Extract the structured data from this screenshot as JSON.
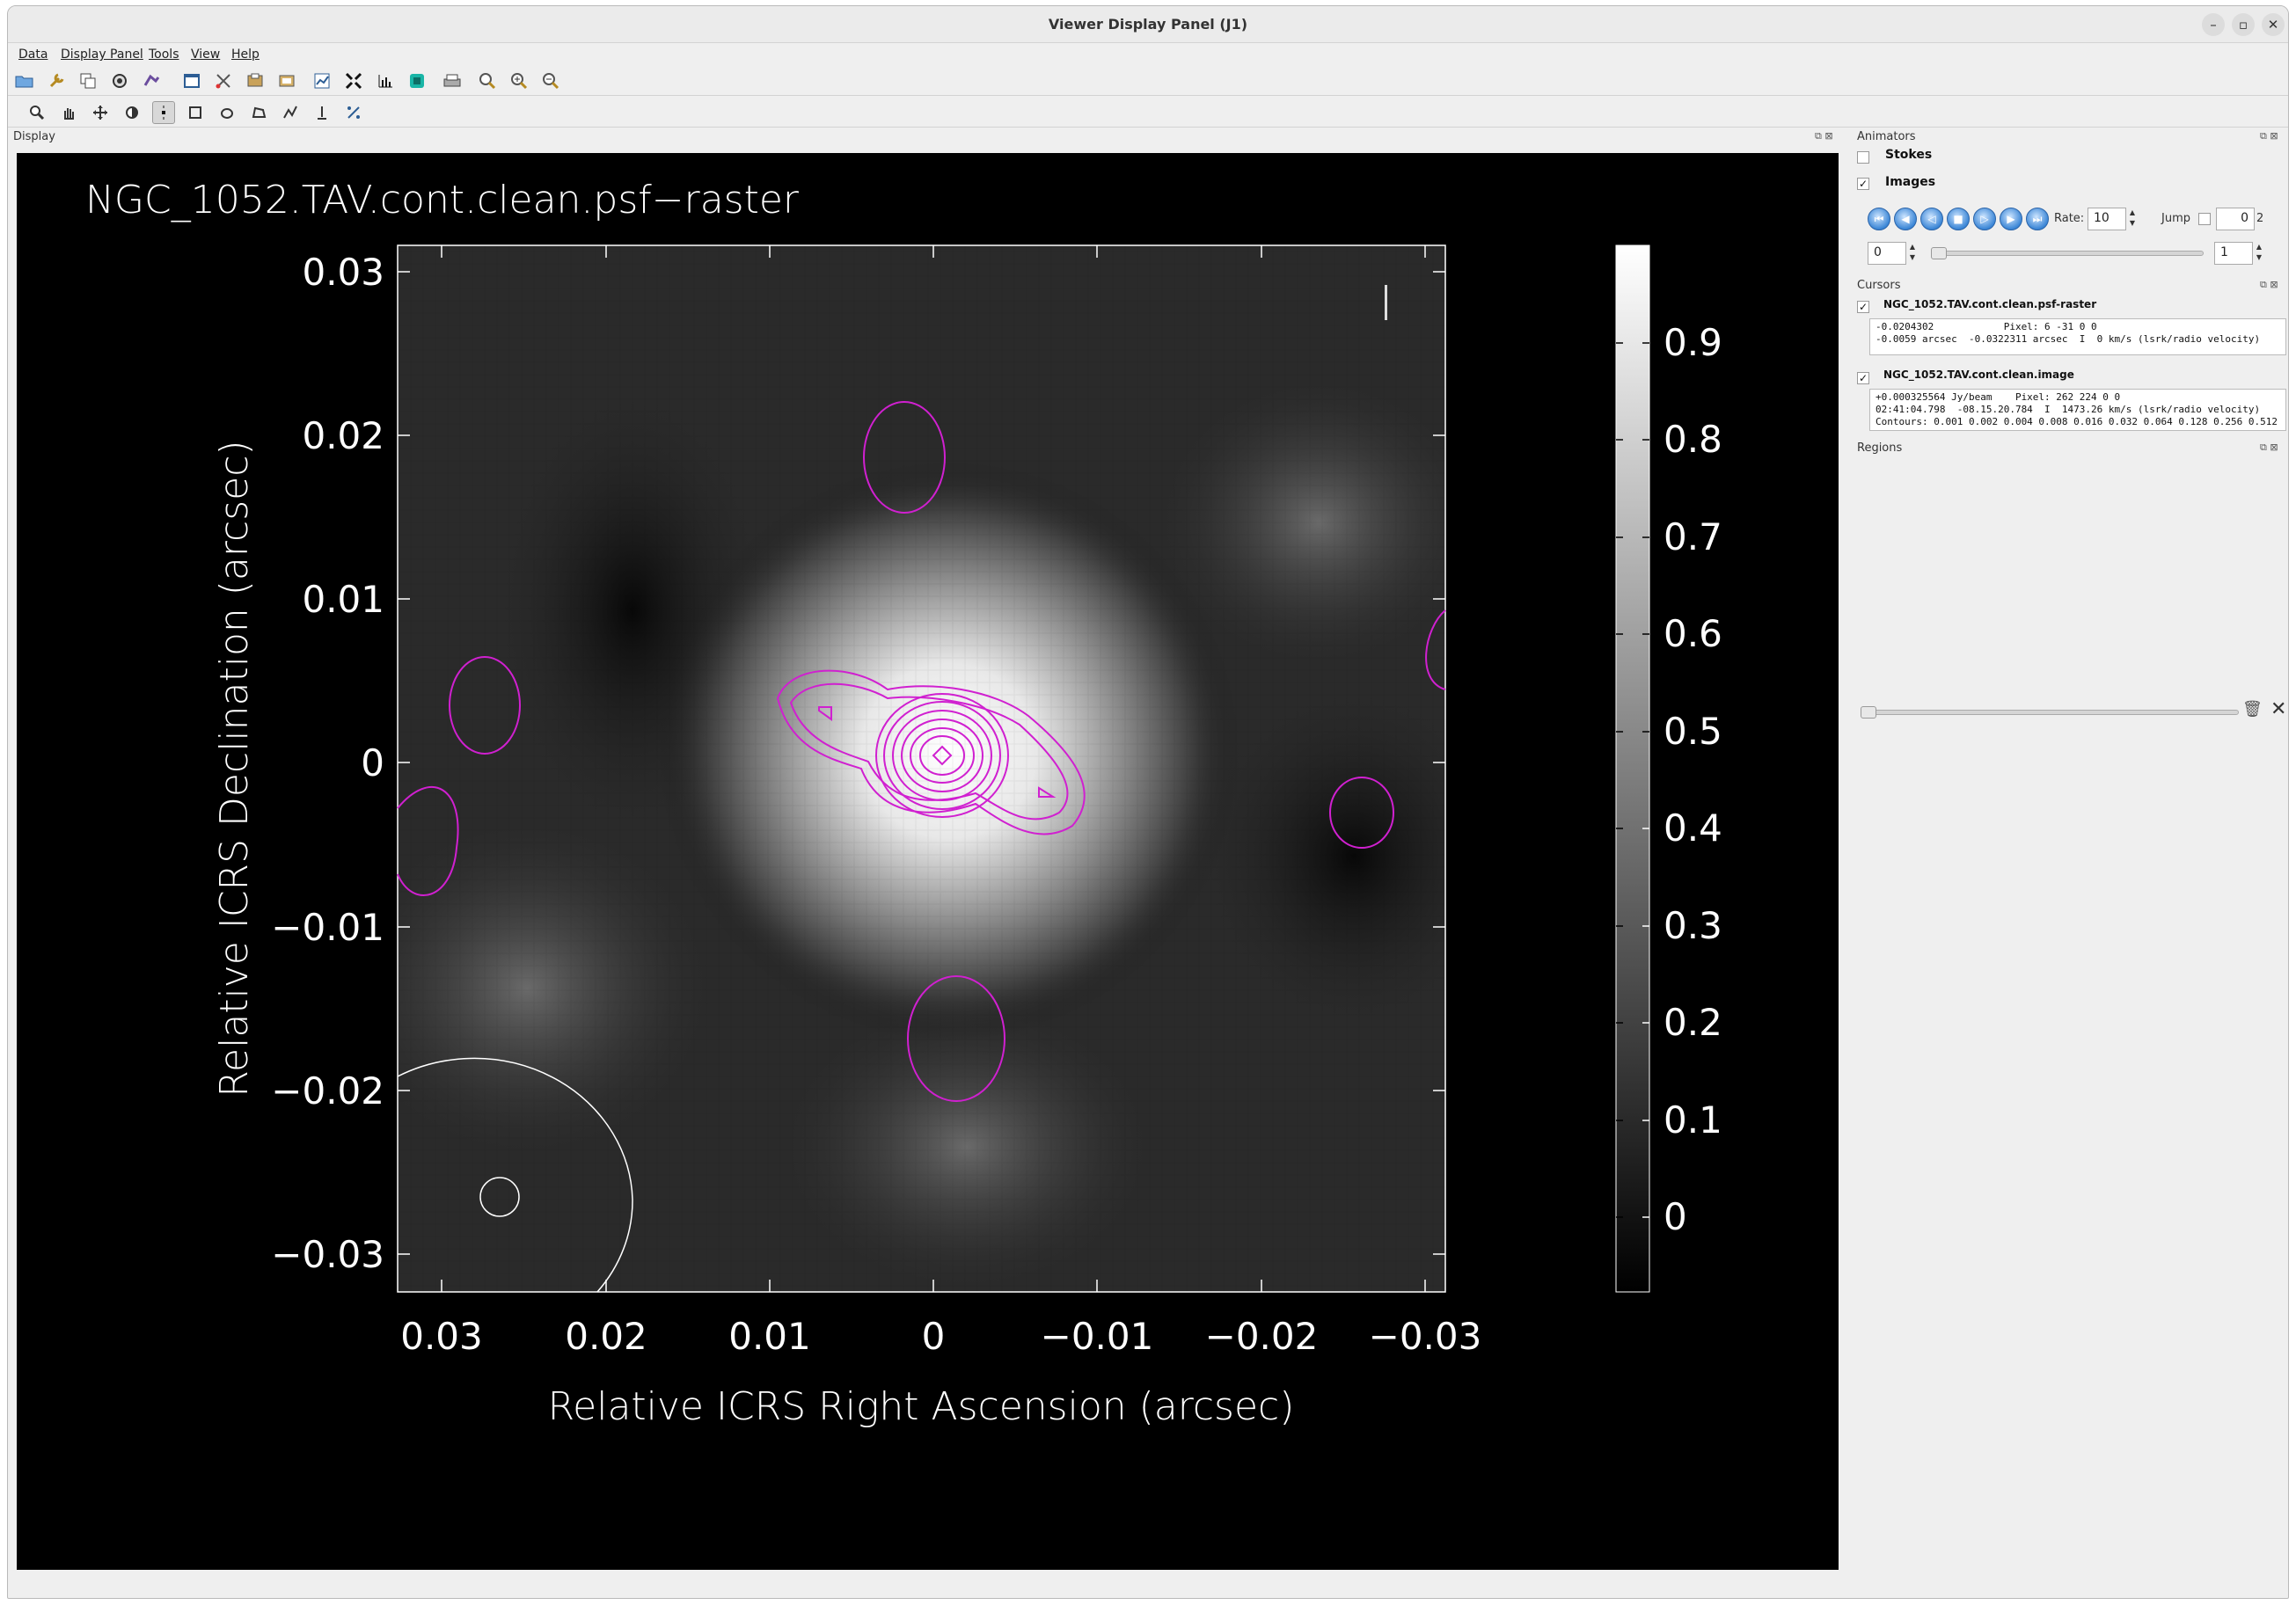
{
  "window": {
    "title": "Viewer Display Panel (J1)"
  },
  "menu": [
    "Data",
    "Display Panel",
    "Tools",
    "View",
    "Help"
  ],
  "toolbar1": [
    "open-icon",
    "wrench-icon",
    "copy-icon",
    "reload-icon",
    "export-icon",
    "panel-icon",
    "scissors-icon",
    "print-preview-icon",
    "save-image-icon",
    "chart-icon",
    "fit-icon",
    "histogram-icon",
    "color-icon",
    "printer-icon",
    "zoom-icon",
    "zoom-in-icon",
    "zoom-out-icon"
  ],
  "toolbar2": [
    "zoom-tool-icon",
    "pan-tool-icon",
    "move-tool-icon",
    "contrast-tool-icon",
    "point-tool-icon",
    "rectangle-tool-icon",
    "ellipse-tool-icon",
    "polygon-tool-icon",
    "polyline-tool-icon",
    "profile-tool-icon",
    "positioning-tool-icon"
  ],
  "display": {
    "dock_title": "Display",
    "plot_title": "NGC_1052.TAV.cont.clean.psf−raster",
    "xlabel": "Relative ICRS Right Ascension (arcsec)",
    "ylabel": "Relative ICRS Declination (arcsec)",
    "xticks": [
      "0.03",
      "0.02",
      "0.01",
      "0",
      "−0.01",
      "−0.02",
      "−0.03"
    ],
    "yticks": [
      "0.03",
      "0.02",
      "0.01",
      "0",
      "−0.01",
      "−0.02",
      "−0.03"
    ],
    "colorbar_ticks": [
      "0.9",
      "0.8",
      "0.7",
      "0.6",
      "0.5",
      "0.4",
      "0.3",
      "0.2",
      "0.1",
      "0"
    ],
    "colors": {
      "background": "#000000",
      "contour": "#d020d0",
      "axis": "#ffffff"
    }
  },
  "animators": {
    "dock_title": "Animators",
    "stokes_label": "Stokes",
    "stokes_checked": false,
    "images_label": "Images",
    "images_checked": true,
    "rate_label": "Rate:",
    "rate_value": "10",
    "jump_label": "Jump",
    "jump_value": "0",
    "jump_max": "2",
    "frame_start": "0",
    "frame_step": "1"
  },
  "cursors": {
    "dock_title": "Cursors",
    "items": [
      {
        "name": "NGC_1052.TAV.cont.clean.psf-raster",
        "checked": true,
        "lines": [
          "-0.0204302            Pixel: 6 -31 0 0",
          "-0.0059 arcsec  -0.0322311 arcsec  I  0 km/s (lsrk/radio velocity)"
        ]
      },
      {
        "name": "NGC_1052.TAV.cont.clean.image",
        "checked": true,
        "lines": [
          "+0.000325564 Jy/beam    Pixel: 262 224 0 0",
          "02:41:04.798  -08.15.20.784  I  1473.26 km/s (lsrk/radio velocity)",
          "Contours: 0.001 0.002 0.004 0.008 0.016 0.032 0.064 0.128 0.256 0.512"
        ]
      }
    ]
  },
  "regions": {
    "dock_title": "Regions"
  }
}
